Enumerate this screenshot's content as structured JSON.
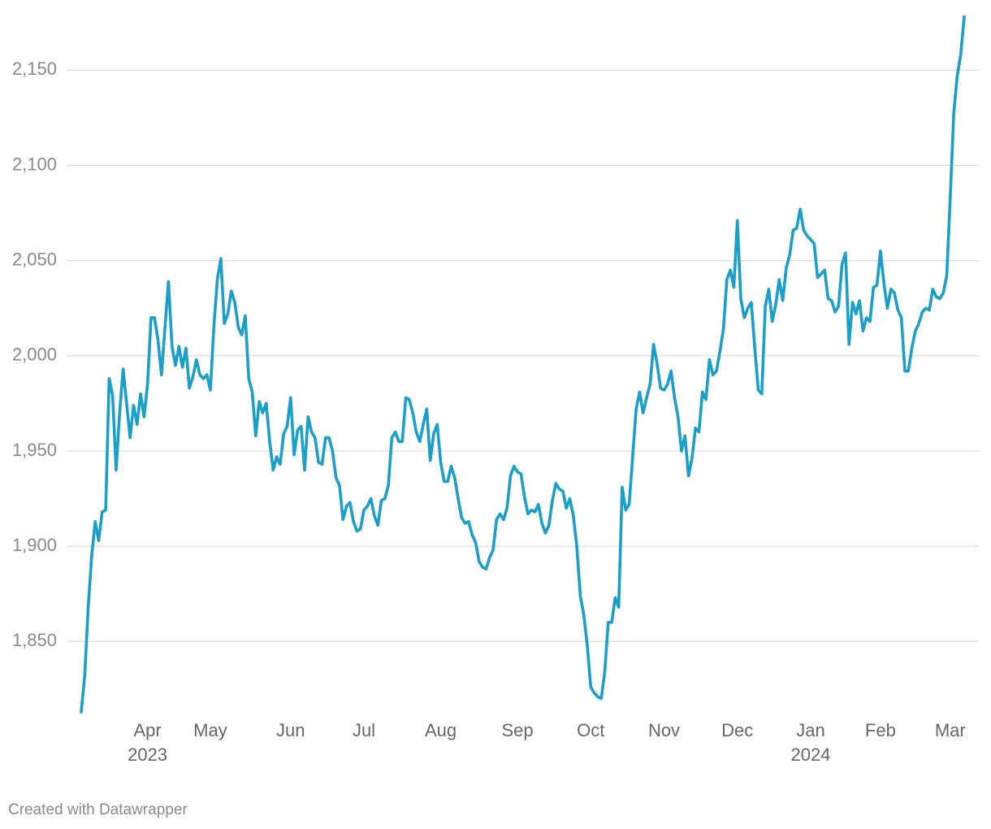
{
  "chart_data": {
    "type": "line",
    "footer": "Created with Datawrapper",
    "categories": [
      null,
      null,
      null,
      null,
      null,
      null,
      null,
      null,
      null,
      null,
      null,
      null,
      null,
      null,
      null,
      null,
      null,
      null,
      null,
      "Apr\n2023",
      null,
      null,
      null,
      null,
      null,
      null,
      null,
      null,
      null,
      null,
      null,
      null,
      null,
      null,
      null,
      null,
      null,
      "May",
      null,
      null,
      null,
      null,
      null,
      null,
      null,
      null,
      null,
      null,
      null,
      null,
      null,
      null,
      null,
      null,
      null,
      null,
      null,
      null,
      null,
      null,
      "Jun",
      null,
      null,
      null,
      null,
      null,
      null,
      null,
      null,
      null,
      null,
      null,
      null,
      null,
      null,
      null,
      null,
      null,
      null,
      null,
      null,
      "Jul",
      null,
      null,
      null,
      null,
      null,
      null,
      null,
      null,
      null,
      null,
      null,
      null,
      null,
      null,
      null,
      null,
      null,
      null,
      null,
      null,
      null,
      "Aug",
      null,
      null,
      null,
      null,
      null,
      null,
      null,
      null,
      null,
      null,
      null,
      null,
      null,
      null,
      null,
      null,
      null,
      null,
      null,
      null,
      null,
      "Sep",
      null,
      null,
      null,
      null,
      null,
      null,
      null,
      null,
      null,
      null,
      null,
      null,
      null,
      null,
      null,
      null,
      null,
      null,
      null,
      null,
      "Oct",
      null,
      null,
      null,
      null,
      null,
      null,
      null,
      null,
      null,
      null,
      null,
      null,
      null,
      null,
      null,
      null,
      null,
      null,
      null,
      null,
      "Nov",
      null,
      null,
      null,
      null,
      null,
      null,
      null,
      null,
      null,
      null,
      null,
      null,
      null,
      null,
      null,
      null,
      null,
      null,
      null,
      null,
      "Dec",
      null,
      null,
      null,
      null,
      null,
      null,
      null,
      null,
      null,
      null,
      null,
      null,
      null,
      null,
      null,
      null,
      null,
      null,
      null,
      null,
      "Jan\n2024",
      null,
      null,
      null,
      null,
      null,
      null,
      null,
      null,
      null,
      null,
      null,
      null,
      null,
      null,
      null,
      null,
      null,
      null,
      null,
      "Feb",
      null,
      null,
      null,
      null,
      null,
      null,
      null,
      null,
      null,
      null,
      null,
      null,
      null,
      null,
      null,
      null,
      null,
      null,
      null,
      "Mar",
      null,
      null,
      null,
      null
    ],
    "series": [
      {
        "color": "#1a9fcb",
        "values": [
          1813,
          1832,
          1868,
          1895,
          1913,
          1903,
          1918,
          1919,
          1988,
          1979,
          1940,
          1970,
          1993,
          1975,
          1957,
          1974,
          1964,
          1980,
          1968,
          1985,
          2020,
          2020,
          2008,
          1990,
          2015,
          2039,
          2005,
          1995,
          2005,
          1994,
          2004,
          1983,
          1989,
          1998,
          1990,
          1988,
          1990,
          1982,
          2015,
          2040,
          2051,
          2017,
          2022,
          2034,
          2028,
          2015,
          2011,
          2021,
          1988,
          1981,
          1958,
          1976,
          1970,
          1975,
          1955,
          1940,
          1947,
          1943,
          1959,
          1963,
          1978,
          1948,
          1961,
          1963,
          1940,
          1968,
          1960,
          1957,
          1944,
          1943,
          1957,
          1957,
          1950,
          1936,
          1932,
          1914,
          1921,
          1923,
          1913,
          1908,
          1909,
          1919,
          1921,
          1925,
          1916,
          1911,
          1924,
          1925,
          1932,
          1957,
          1960,
          1955,
          1955,
          1978,
          1977,
          1970,
          1960,
          1955,
          1964,
          1972,
          1945,
          1959,
          1964,
          1944,
          1934,
          1934,
          1942,
          1936,
          1925,
          1915,
          1912,
          1913,
          1906,
          1902,
          1892,
          1889,
          1888,
          1894,
          1898,
          1914,
          1917,
          1914,
          1920,
          1937,
          1942,
          1939,
          1938,
          1926,
          1917,
          1919,
          1918,
          1922,
          1912,
          1907,
          1911,
          1924,
          1933,
          1930,
          1929,
          1920,
          1925,
          1916,
          1900,
          1874,
          1864,
          1848,
          1826,
          1823,
          1821,
          1820,
          1834,
          1860,
          1860,
          1873,
          1868,
          1931,
          1919,
          1922,
          1947,
          1972,
          1981,
          1970,
          1978,
          1985,
          2006,
          1996,
          1983,
          1982,
          1985,
          1992,
          1978,
          1968,
          1950,
          1958,
          1937,
          1946,
          1962,
          1960,
          1981,
          1977,
          1998,
          1990,
          1992,
          2002,
          2014,
          2040,
          2045,
          2036,
          2071,
          2030,
          2020,
          2025,
          2028,
          2004,
          1982,
          1980,
          2026,
          2035,
          2018,
          2027,
          2040,
          2029,
          2046,
          2053,
          2066,
          2067,
          2077,
          2066,
          2063,
          2061,
          2059,
          2041,
          2043,
          2045,
          2030,
          2029,
          2023,
          2026,
          2048,
          2054,
          2006,
          2028,
          2022,
          2029,
          2013,
          2020,
          2018,
          2036,
          2037,
          2055,
          2038,
          2025,
          2035,
          2033,
          2024,
          2020,
          1992,
          1992,
          2004,
          2013,
          2017,
          2023,
          2025,
          2024,
          2035,
          2031,
          2030,
          2033,
          2042,
          2083,
          2127,
          2147,
          2158,
          2178
        ]
      }
    ],
    "ylim": [
      1810,
      2180
    ],
    "yticks": [
      {
        "value": 1850,
        "label": "1,850"
      },
      {
        "value": 1900,
        "label": "1,900"
      },
      {
        "value": 1950,
        "label": "1,950"
      },
      {
        "value": 2000,
        "label": "2,000"
      },
      {
        "value": 2050,
        "label": "2,050"
      },
      {
        "value": 2100,
        "label": "2,100"
      },
      {
        "value": 2150,
        "label": "2,150"
      }
    ],
    "grid": true
  }
}
